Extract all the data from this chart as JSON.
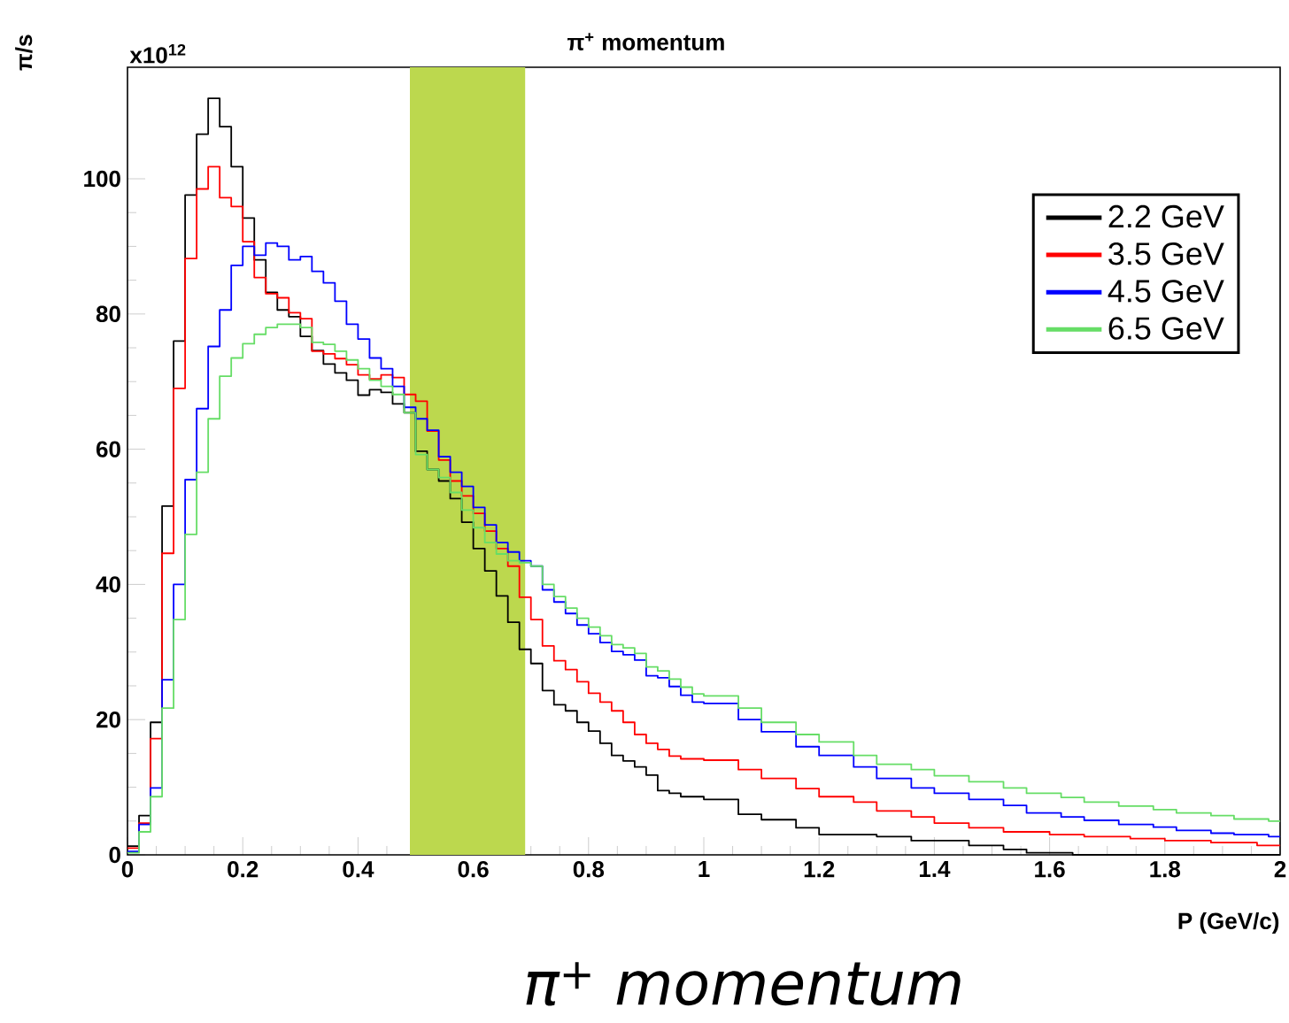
{
  "chart_data": {
    "type": "step",
    "title": "π$^{+}$ momentum",
    "xlabel": "P (GeV/c)",
    "ylabel": "π/s",
    "annotations": [
      "x10$^{12}$",
      "π$^{+}$ momentum"
    ],
    "xlim": [
      0,
      2
    ],
    "ylim": [
      0,
      116.5
    ],
    "xticks": [
      0,
      0.2,
      0.4,
      0.6,
      0.8,
      1,
      1.2,
      1.4,
      1.6,
      1.8,
      2
    ],
    "yticks": [
      0,
      20,
      40,
      60,
      80,
      100
    ],
    "legend": "top right",
    "bands": [
      {
        "axis": "x",
        "from": 0.49,
        "to": 0.69,
        "color": "#bcd84e"
      }
    ],
    "series": [
      {
        "name": "2.2 GeV",
        "color": "#000000",
        "x": [
          0,
          0.02,
          0.04,
          0.06,
          0.08,
          0.1,
          0.12,
          0.14,
          0.16,
          0.18,
          0.2,
          0.22,
          0.24,
          0.26,
          0.28,
          0.3,
          0.32,
          0.34,
          0.36,
          0.38,
          0.4,
          0.42,
          0.44,
          0.46,
          0.48,
          0.5,
          0.52,
          0.54,
          0.56,
          0.58,
          0.6,
          0.62,
          0.64,
          0.66,
          0.68,
          0.7,
          0.72,
          0.74,
          0.76,
          0.78,
          0.8,
          0.82,
          0.84,
          0.86,
          0.88,
          0.9,
          0.92,
          0.94,
          0.96,
          1.0,
          1.06,
          1.1,
          1.16,
          1.2,
          1.3,
          1.36,
          1.46,
          1.52,
          1.56,
          1.64,
          2.0
        ],
        "values": [
          1.3,
          5.8,
          19.6,
          51.6,
          76,
          97.6,
          106.6,
          111.9,
          107.7,
          101.8,
          94.2,
          88,
          83.2,
          80.6,
          79.6,
          76.7,
          74.6,
          72.6,
          71.3,
          70.2,
          68,
          68.8,
          68.4,
          66.7,
          65.4,
          59.7,
          57,
          55.3,
          52.7,
          49.2,
          45.3,
          42,
          38.3,
          34.4,
          30.4,
          28.3,
          24.3,
          22.2,
          21.3,
          19.6,
          18.3,
          16.5,
          14.7,
          13.9,
          13,
          11.8,
          9.5,
          9.1,
          8.6,
          8.2,
          6.0,
          5.2,
          4.0,
          3.0,
          2.7,
          2.1,
          1.4,
          0.8,
          0.3,
          0,
          0
        ]
      },
      {
        "name": "3.5 GeV",
        "color": "#ff0000",
        "x": [
          0,
          0.02,
          0.04,
          0.06,
          0.08,
          0.1,
          0.12,
          0.14,
          0.16,
          0.18,
          0.2,
          0.22,
          0.24,
          0.26,
          0.28,
          0.3,
          0.32,
          0.34,
          0.36,
          0.38,
          0.4,
          0.42,
          0.44,
          0.46,
          0.48,
          0.5,
          0.52,
          0.54,
          0.56,
          0.58,
          0.6,
          0.62,
          0.64,
          0.66,
          0.68,
          0.7,
          0.72,
          0.74,
          0.76,
          0.78,
          0.8,
          0.82,
          0.84,
          0.86,
          0.88,
          0.9,
          0.92,
          0.94,
          0.96,
          1.0,
          1.06,
          1.1,
          1.16,
          1.2,
          1.26,
          1.3,
          1.36,
          1.4,
          1.46,
          1.52,
          1.6,
          1.66,
          1.74,
          1.8,
          1.88,
          1.96,
          2.0
        ],
        "values": [
          1,
          4.7,
          17.2,
          44.6,
          69,
          88.2,
          98.5,
          101.8,
          97.2,
          95.9,
          90.7,
          85.4,
          83,
          82.4,
          80.2,
          79.3,
          74.5,
          74.1,
          73.4,
          72.5,
          71,
          70.4,
          71,
          70.6,
          68.1,
          67.1,
          62.7,
          58.4,
          55.3,
          53.1,
          50.5,
          47.9,
          45.3,
          42.7,
          38.1,
          34.8,
          30.9,
          28.7,
          27.4,
          25.6,
          23.9,
          22.6,
          21.3,
          19.6,
          17.8,
          16.5,
          15.6,
          14.6,
          14.2,
          14,
          12.6,
          11.3,
          9.8,
          8.6,
          7.8,
          6.5,
          5.6,
          4.7,
          4.0,
          3.4,
          3.0,
          2.7,
          2.4,
          2.1,
          1.8,
          1.4,
          1.4
        ]
      },
      {
        "name": "4.5 GeV",
        "color": "#0000ff",
        "x": [
          0,
          0.02,
          0.04,
          0.06,
          0.08,
          0.1,
          0.12,
          0.14,
          0.16,
          0.18,
          0.2,
          0.22,
          0.24,
          0.26,
          0.28,
          0.3,
          0.32,
          0.34,
          0.36,
          0.38,
          0.4,
          0.42,
          0.44,
          0.46,
          0.48,
          0.5,
          0.52,
          0.54,
          0.56,
          0.58,
          0.6,
          0.62,
          0.64,
          0.66,
          0.68,
          0.7,
          0.72,
          0.74,
          0.76,
          0.78,
          0.8,
          0.82,
          0.84,
          0.86,
          0.88,
          0.9,
          0.92,
          0.94,
          0.96,
          0.98,
          1.0,
          1.06,
          1.1,
          1.16,
          1.2,
          1.26,
          1.3,
          1.36,
          1.4,
          1.46,
          1.52,
          1.56,
          1.62,
          1.66,
          1.72,
          1.78,
          1.82,
          1.88,
          1.92,
          1.98,
          2.0
        ],
        "values": [
          0.5,
          4.5,
          9.9,
          25.9,
          40,
          55.5,
          66,
          75.2,
          80.6,
          87.2,
          90,
          88.7,
          90.5,
          90,
          88,
          88.5,
          86.3,
          84.6,
          81.9,
          78.5,
          76.3,
          73.5,
          71.9,
          69.3,
          66.2,
          64.5,
          62.8,
          58.9,
          56.6,
          54.5,
          51.4,
          48.8,
          46.2,
          44.8,
          43.5,
          42.7,
          39.2,
          37.4,
          35.7,
          34,
          32.7,
          31.4,
          30.1,
          29.6,
          28.8,
          26.5,
          26.2,
          24.9,
          23.6,
          22.6,
          22.4,
          20,
          18.2,
          16,
          14.7,
          13,
          11.3,
          9.9,
          9.1,
          8.2,
          7.3,
          6.2,
          5.6,
          5.1,
          4.5,
          4.1,
          3.6,
          3.2,
          3.0,
          2.7,
          2.7
        ]
      },
      {
        "name": "6.5 GeV",
        "color": "#66dd66",
        "x": [
          0,
          0.02,
          0.04,
          0.06,
          0.08,
          0.1,
          0.12,
          0.14,
          0.16,
          0.18,
          0.2,
          0.22,
          0.24,
          0.26,
          0.28,
          0.3,
          0.32,
          0.34,
          0.36,
          0.38,
          0.4,
          0.42,
          0.44,
          0.46,
          0.48,
          0.5,
          0.52,
          0.54,
          0.56,
          0.58,
          0.6,
          0.62,
          0.64,
          0.66,
          0.68,
          0.7,
          0.72,
          0.74,
          0.76,
          0.78,
          0.8,
          0.82,
          0.84,
          0.86,
          0.88,
          0.9,
          0.92,
          0.94,
          0.96,
          0.98,
          1.0,
          1.06,
          1.1,
          1.16,
          1.2,
          1.26,
          1.3,
          1.36,
          1.4,
          1.46,
          1.52,
          1.56,
          1.62,
          1.66,
          1.72,
          1.78,
          1.82,
          1.88,
          1.92,
          1.98,
          2.0
        ],
        "values": [
          0.3,
          3.4,
          8.6,
          21.7,
          34.8,
          47.4,
          56.6,
          64.5,
          70.8,
          73.5,
          75.6,
          77,
          78,
          78.5,
          78.5,
          78,
          75.8,
          75.5,
          74.5,
          73.2,
          71.9,
          70.2,
          69.3,
          68.1,
          65.4,
          59.2,
          57,
          55.8,
          53.6,
          51,
          48.4,
          46.2,
          44.5,
          43.5,
          43.2,
          42.7,
          40,
          38.2,
          36.5,
          35,
          33.7,
          32.4,
          31.1,
          30.6,
          29.8,
          27.8,
          27.2,
          26,
          24.8,
          23.8,
          23.5,
          21.7,
          19.6,
          17.8,
          16.7,
          14.7,
          13.4,
          12.6,
          11.7,
          10.8,
          9.9,
          9.1,
          8.5,
          7.8,
          7.2,
          6.7,
          6.2,
          5.8,
          5.3,
          5.0,
          5.0
        ]
      }
    ]
  }
}
